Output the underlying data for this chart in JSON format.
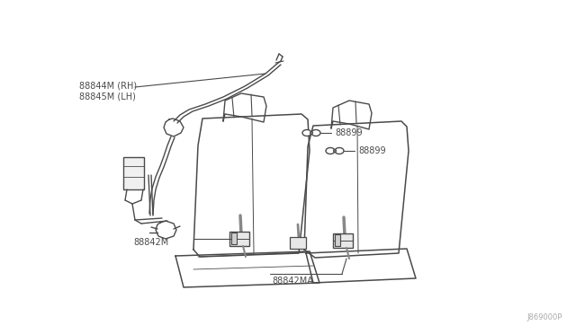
{
  "bg_color": "#ffffff",
  "line_color": "#4a4a4a",
  "label_color": "#4a4a4a",
  "figsize": [
    6.4,
    3.72
  ],
  "dpi": 100,
  "watermark": "J869000P",
  "labels": {
    "88844M_RH": "88844M (RH)",
    "88845M_LH": "88845M (LH)",
    "88842M": "88842M",
    "88842MA": "88842MA",
    "88899_top": "88899",
    "88899_bot": "88899"
  },
  "label_fontsize": 7.0
}
